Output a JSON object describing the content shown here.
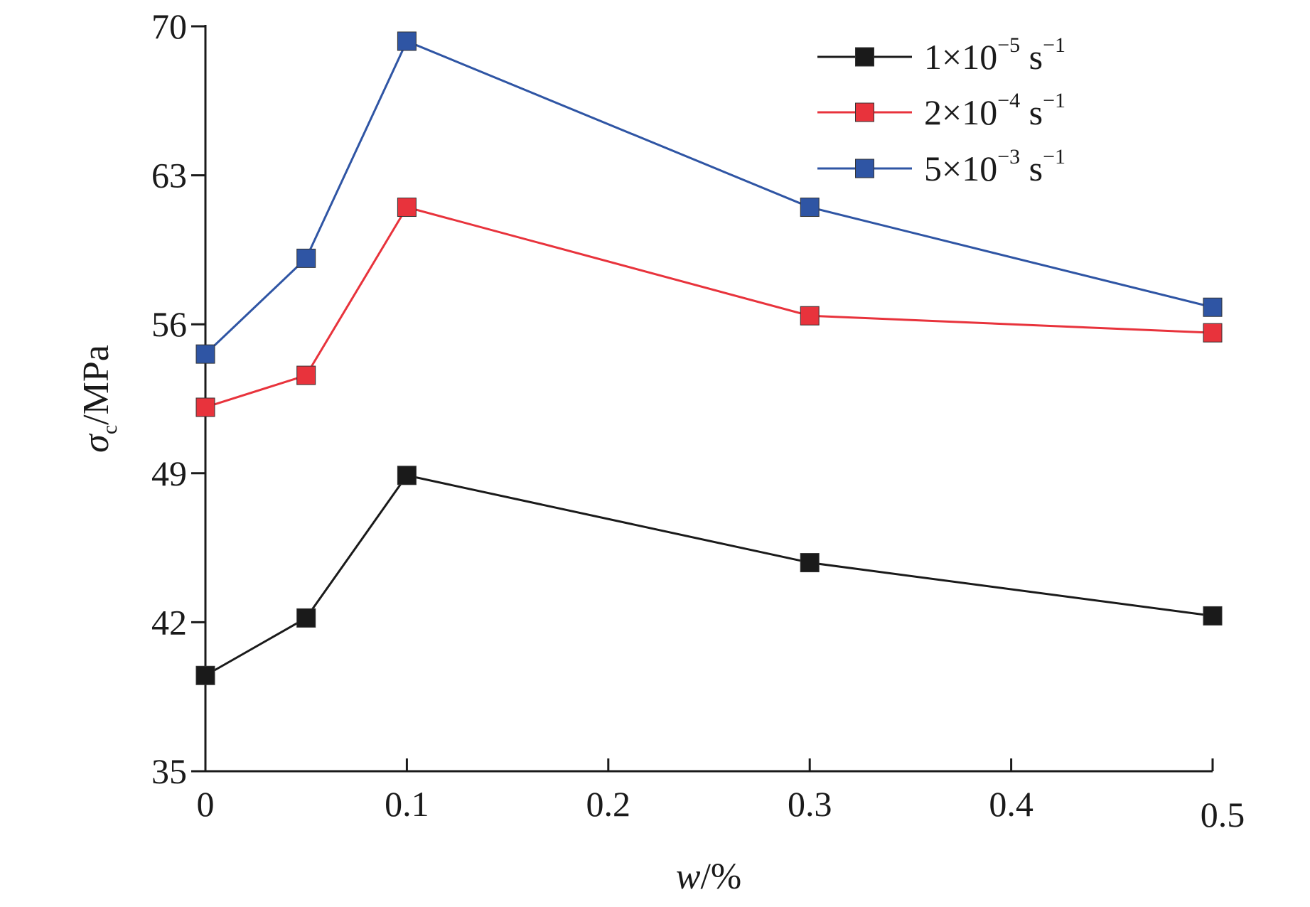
{
  "chart_data": {
    "type": "line",
    "x": [
      0,
      0.05,
      0.1,
      0.3,
      0.5
    ],
    "x_ticks": [
      "0",
      "0.1",
      "0.2",
      "0.3",
      "0.4",
      "0.5"
    ],
    "x_tick_values": [
      0,
      0.1,
      0.2,
      0.3,
      0.4,
      0.5
    ],
    "y_ticks": [
      "35",
      "42",
      "49",
      "56",
      "63",
      "70"
    ],
    "y_tick_values": [
      35,
      42,
      49,
      56,
      63,
      70
    ],
    "xlim": [
      0,
      0.5
    ],
    "ylim": [
      35,
      70
    ],
    "grid": false,
    "legend_position": "top-right",
    "xlabel": {
      "italic": "w",
      "rest": "/%"
    },
    "ylabel": {
      "italic": "σ",
      "sub": "c",
      "rest": "/MPa"
    },
    "series": [
      {
        "name": "1×10⁻⁵ s⁻¹",
        "legend": {
          "coef": "1",
          "exp": "−5",
          "unit_exp": "−1"
        },
        "color": "#1a1a1a",
        "values": [
          39.5,
          42.2,
          48.9,
          44.8,
          42.3
        ]
      },
      {
        "name": "2×10⁻⁴ s⁻¹",
        "legend": {
          "coef": "2",
          "exp": "−4",
          "unit_exp": "−1"
        },
        "color": "#e8333c",
        "values": [
          52.1,
          53.6,
          61.5,
          56.4,
          55.6
        ]
      },
      {
        "name": "5×10⁻³ s⁻¹",
        "legend": {
          "coef": "5",
          "exp": "−3",
          "unit_exp": "−1"
        },
        "color": "#2f55a4",
        "values": [
          54.6,
          59.1,
          69.3,
          61.5,
          56.8
        ]
      }
    ]
  }
}
